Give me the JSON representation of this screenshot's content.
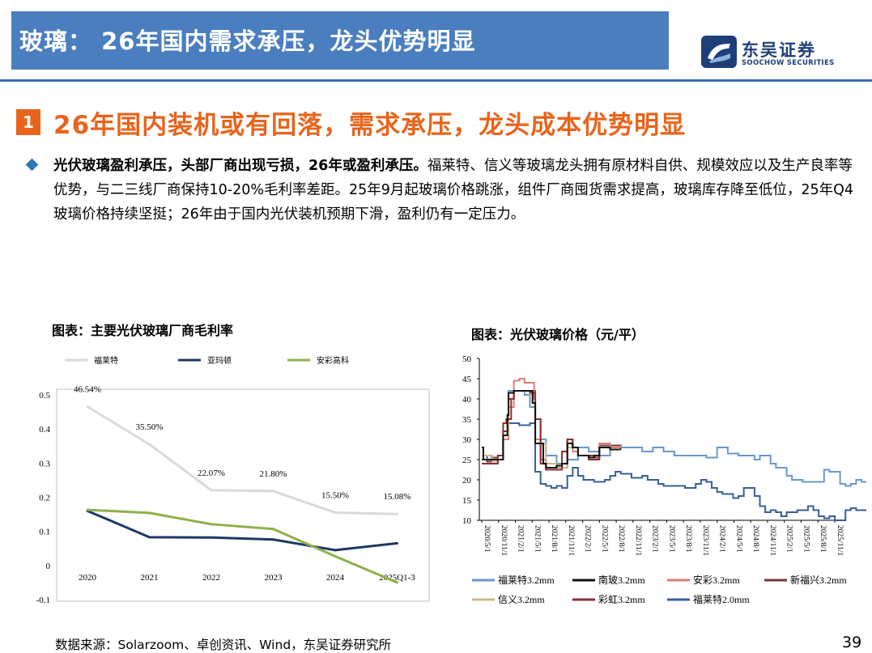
{
  "header": {
    "title": "玻璃： 26年国内需求承压，龙头优势明显"
  },
  "logo": {
    "name": "东吴证券",
    "name_en": "SOOCHOW SECURITIES"
  },
  "section": {
    "number": "1",
    "title": "26年国内装机或有回落，需求承压，龙头成本优势明显"
  },
  "paragraph": {
    "lead": "光伏玻璃盈利承压，头部厂商出现亏损，26年或盈利承压。",
    "body": "福莱特、信义等玻璃龙头拥有原材料自供、规模效应以及生产良率等优势，与二三线厂商保持10-20%毛利率差距。25年9月起玻璃价格跳涨，组件厂商囤货需求提高，玻璃库存降至低位，25年Q4玻璃价格持续坚挺；26年由于国内光伏装机预期下滑，盈利仍有一定压力。"
  },
  "charts": {
    "left_title": "图表：主要光伏玻璃厂商毛利率",
    "right_title": "图表：光伏玻璃价格（元/平）"
  },
  "footer": {
    "source": "数据来源：Solarzoom、卓创资讯、Wind，东吴证券研究所",
    "page": "39"
  },
  "chart_data": [
    {
      "type": "line",
      "title": "图表：主要光伏玻璃厂商毛利率",
      "categories": [
        "2020",
        "2021",
        "2022",
        "2023",
        "2024",
        "2025Q1-3"
      ],
      "ylim": [
        -0.1,
        0.5
      ],
      "yticks": [
        "-0.1",
        "0",
        "0.1",
        "0.2",
        "0.3",
        "0.4",
        "0.5"
      ],
      "legend_position": "top",
      "series": [
        {
          "name": "福莱特",
          "color": "#d9d9d9",
          "values": [
            0.4654,
            0.355,
            0.2207,
            0.218,
            0.155,
            0.1508
          ],
          "labels": [
            "46.54%",
            "35.50%",
            "22.07%",
            "21.80%",
            "15.50%",
            "15.08%"
          ]
        },
        {
          "name": "亚玛顿",
          "color": "#1f3864",
          "values": [
            0.16,
            0.083,
            0.082,
            0.076,
            0.045,
            0.065
          ]
        },
        {
          "name": "安彩高科",
          "color": "#8fb04a",
          "values": [
            0.163,
            0.154,
            0.121,
            0.107,
            0.027,
            -0.05
          ]
        }
      ]
    },
    {
      "type": "line",
      "title": "图表：光伏玻璃价格（元/平）",
      "ylim": [
        10,
        50
      ],
      "yticks": [
        "10",
        "15",
        "20",
        "25",
        "30",
        "35",
        "40",
        "45",
        "50"
      ],
      "x_start": "2020-05",
      "x_end": "2025-11",
      "xticks": [
        "2020/5/1",
        "2020/11/1",
        "2021/5/1",
        "2021/11/1",
        "2022/5/1",
        "2022/11/1",
        "2023/5/1",
        "2023/11/1",
        "2024/5/1",
        "2024/11/1",
        "2025/5/1",
        "2025/11/1"
      ],
      "xtick_labels": [
        "2020/5/1",
        "2020/11/1",
        "2021/2/1",
        "2021/5/1",
        "2021/8/1",
        "2021/11/1",
        "2022/2/1",
        "2022/5/1",
        "2022/8/1",
        "2022/11/1",
        "2023/2/1",
        "2023/5/1",
        "2023/8/1",
        "2023/11/1",
        "2024/2/1",
        "2024/5/1",
        "2024/8/1",
        "2024/11/1",
        "2025/2/1",
        "2025/5/1",
        "2025/8/1",
        "2025/11/1"
      ],
      "legend_position": "bottom",
      "series": [
        {
          "name": "福莱特3.2mm",
          "color": "#6a98c9",
          "points": [
            [
              0,
              26
            ],
            [
              1.8,
              24.5
            ],
            [
              3,
              26
            ],
            [
              4,
              30
            ],
            [
              5,
              42
            ],
            [
              6,
              42
            ],
            [
              8,
              41
            ],
            [
              9,
              38
            ],
            [
              10,
              30
            ],
            [
              12,
              26
            ],
            [
              14,
              24
            ],
            [
              16,
              25
            ],
            [
              18,
              28
            ],
            [
              20,
              27
            ],
            [
              22,
              26
            ],
            [
              24,
              28
            ],
            [
              26,
              28
            ],
            [
              28,
              28
            ],
            [
              30,
              27
            ],
            [
              32,
              28
            ],
            [
              34,
              27
            ],
            [
              36,
              26
            ],
            [
              38,
              26
            ],
            [
              40,
              26
            ],
            [
              42,
              25.5
            ],
            [
              44,
              28
            ],
            [
              45,
              28
            ],
            [
              46,
              26.5
            ],
            [
              48,
              26
            ],
            [
              50,
              26
            ],
            [
              51,
              25
            ],
            [
              52,
              26
            ],
            [
              54,
              24
            ],
            [
              55,
              23
            ],
            [
              57,
              21
            ],
            [
              58,
              20
            ],
            [
              60,
              19.5
            ],
            [
              62,
              19.5
            ],
            [
              63,
              19.5
            ],
            [
              64,
              22.5
            ],
            [
              65,
              22
            ],
            [
              67,
              19
            ],
            [
              68,
              18.5
            ],
            [
              69,
              19
            ],
            [
              70,
              20
            ],
            [
              71,
              19.5
            ],
            [
              72,
              19.5
            ]
          ]
        },
        {
          "name": "南玻3.2mm",
          "color": "#111111",
          "points": [
            [
              0,
              28
            ],
            [
              0.3,
              25
            ],
            [
              2,
              25
            ],
            [
              3,
              25
            ],
            [
              4,
              31
            ],
            [
              4.8,
              36
            ],
            [
              5,
              41.5
            ],
            [
              6,
              42
            ],
            [
              8,
              42
            ],
            [
              9,
              42
            ],
            [
              9.5,
              39
            ],
            [
              10,
              29
            ],
            [
              11.5,
              24
            ],
            [
              12,
              23
            ],
            [
              14,
              23.5
            ],
            [
              15,
              24
            ],
            [
              16,
              29
            ],
            [
              17,
              28
            ],
            [
              18,
              26
            ],
            [
              20,
              25.5
            ],
            [
              21,
              26
            ],
            [
              22,
              28
            ],
            [
              24,
              27.5
            ],
            [
              26,
              27.5
            ]
          ]
        },
        {
          "name": "安彩3.2mm",
          "color": "#d97e7a",
          "points": [
            [
              0,
              26
            ],
            [
              2,
              25
            ],
            [
              3,
              25
            ],
            [
              4,
              30
            ],
            [
              5,
              38
            ],
            [
              6,
              44.5
            ],
            [
              7,
              45
            ],
            [
              8,
              44
            ],
            [
              9,
              44
            ],
            [
              9.8,
              40
            ],
            [
              10,
              30
            ],
            [
              11,
              25
            ],
            [
              12,
              24
            ],
            [
              14,
              23
            ],
            [
              15,
              24
            ],
            [
              16,
              30
            ],
            [
              17,
              27
            ],
            [
              18,
              26
            ],
            [
              20,
              25.5
            ],
            [
              22,
              29
            ],
            [
              24,
              28
            ],
            [
              26,
              28.5
            ]
          ]
        },
        {
          "name": "新福兴3.2mm",
          "color": "#7b3436",
          "points": [
            [
              0,
              25
            ],
            [
              1,
              24.5
            ],
            [
              2,
              25.5
            ],
            [
              3,
              26
            ],
            [
              4,
              32
            ],
            [
              5,
              40
            ],
            [
              6,
              42
            ],
            [
              7,
              42
            ],
            [
              8,
              42
            ],
            [
              9,
              42
            ],
            [
              10,
              35
            ],
            [
              11,
              25
            ],
            [
              12,
              23
            ],
            [
              14,
              23
            ],
            [
              16,
              30
            ],
            [
              17,
              28
            ],
            [
              18,
              26
            ],
            [
              20,
              25
            ],
            [
              22,
              28.5
            ],
            [
              24,
              28.5
            ],
            [
              26,
              27.5
            ]
          ]
        },
        {
          "name": "信义3.2mm",
          "color": "#c8b88a",
          "points": [
            [
              0,
              26
            ],
            [
              2,
              24.5
            ],
            [
              3,
              26
            ],
            [
              4,
              31
            ],
            [
              5,
              41.5
            ],
            [
              6,
              42
            ],
            [
              8,
              42
            ],
            [
              9,
              41
            ],
            [
              9.5,
              39
            ],
            [
              10,
              29
            ],
            [
              12,
              24
            ],
            [
              14,
              23
            ],
            [
              16,
              28
            ],
            [
              18,
              26
            ],
            [
              20,
              25.5
            ],
            [
              22,
              28
            ],
            [
              24,
              27.5
            ]
          ]
        },
        {
          "name": "彩虹3.2mm",
          "color": "#8b2e32",
          "points": [
            [
              0,
              24
            ],
            [
              2,
              24
            ],
            [
              3,
              26
            ],
            [
              4,
              34
            ],
            [
              4.6,
              35
            ],
            [
              5,
              35
            ],
            [
              5.5,
              40
            ],
            [
              6,
              42
            ],
            [
              8,
              42
            ],
            [
              9,
              41.5
            ],
            [
              10,
              35
            ],
            [
              11,
              24
            ],
            [
              12,
              22.5
            ],
            [
              14,
              22.5
            ],
            [
              15,
              27
            ],
            [
              16,
              30
            ],
            [
              17,
              28
            ],
            [
              18,
              26
            ],
            [
              20,
              26
            ],
            [
              21,
              25.5
            ],
            [
              22,
              28
            ],
            [
              24,
              28
            ]
          ]
        },
        {
          "name": "福莱特2.0mm",
          "color": "#3a5f97",
          "points": [
            [
              0,
              26
            ],
            [
              1,
              25
            ],
            [
              2,
              25
            ],
            [
              3,
              26
            ],
            [
              4,
              30
            ],
            [
              5,
              34
            ],
            [
              6,
              34
            ],
            [
              7,
              33.5
            ],
            [
              8,
              33.5
            ],
            [
              9,
              34
            ],
            [
              10,
              22
            ],
            [
              11,
              19
            ],
            [
              12,
              18.5
            ],
            [
              13,
              18
            ],
            [
              14,
              18.5
            ],
            [
              15,
              18
            ],
            [
              16,
              21
            ],
            [
              17,
              23
            ],
            [
              18,
              21
            ],
            [
              19,
              20
            ],
            [
              20,
              20
            ],
            [
              21,
              19.5
            ],
            [
              22,
              19.5
            ],
            [
              23,
              20
            ],
            [
              24,
              21
            ],
            [
              25,
              22
            ],
            [
              26,
              21.5
            ],
            [
              27,
              21.5
            ],
            [
              28,
              20.5
            ],
            [
              29,
              20.5
            ],
            [
              30,
              21
            ],
            [
              31,
              20
            ],
            [
              32,
              20
            ],
            [
              33,
              19
            ],
            [
              34,
              18.5
            ],
            [
              36,
              18.5
            ],
            [
              38,
              18
            ],
            [
              39,
              18
            ],
            [
              40,
              19
            ],
            [
              41,
              20
            ],
            [
              42,
              19.5
            ],
            [
              43,
              18
            ],
            [
              44,
              17
            ],
            [
              45,
              16.5
            ],
            [
              46,
              16.5
            ],
            [
              47,
              15.5
            ],
            [
              48,
              16
            ],
            [
              49,
              18
            ],
            [
              50,
              18
            ],
            [
              51,
              16
            ],
            [
              52,
              13.5
            ],
            [
              53,
              12
            ],
            [
              54,
              12.5
            ],
            [
              55,
              12
            ],
            [
              56,
              11
            ],
            [
              57,
              12
            ],
            [
              58,
              12
            ],
            [
              59,
              12.5
            ],
            [
              60,
              12.5
            ],
            [
              61,
              13.5
            ],
            [
              62,
              12.5
            ],
            [
              63,
              11
            ],
            [
              64,
              10.5
            ],
            [
              65,
              11
            ],
            [
              66,
              10
            ],
            [
              67,
              10
            ],
            [
              68,
              12.5
            ],
            [
              69,
              13
            ],
            [
              70,
              12.5
            ],
            [
              71,
              12.5
            ],
            [
              72,
              12.5
            ]
          ]
        }
      ]
    }
  ]
}
